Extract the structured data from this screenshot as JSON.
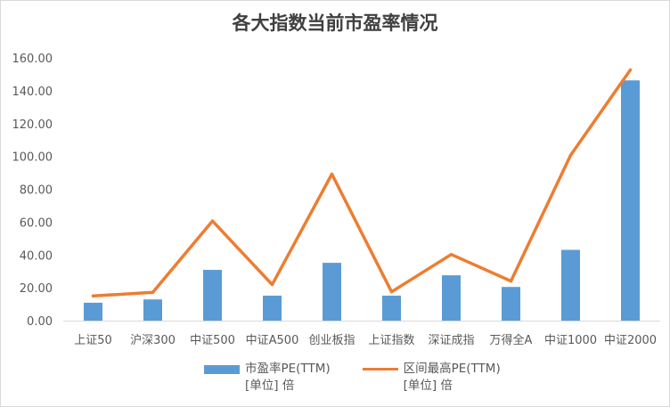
{
  "chart_data": {
    "type": "bar+line",
    "title": "各大指数当前市盈率情况",
    "categories": [
      "上证50",
      "沪深300",
      "中证500",
      "中证A500",
      "创业板指",
      "上证指数",
      "深证成指",
      "万得全A",
      "中证1000",
      "中证2000"
    ],
    "series": [
      {
        "name": "市盈率PE(TTM)\n[单位] 倍",
        "type": "bar",
        "values": [
          10.9,
          12.9,
          30.9,
          15.2,
          35.2,
          15.2,
          27.6,
          20.5,
          43.1,
          146.3
        ]
      },
      {
        "name": "区间最高PE(TTM)\n[单位] 倍",
        "type": "line",
        "values": [
          15.0,
          17.2,
          60.7,
          21.9,
          89.2,
          17.5,
          40.3,
          24.1,
          100.8,
          152.7
        ]
      }
    ],
    "ylim": [
      0,
      160
    ],
    "yticks": [
      "0.00",
      "20.00",
      "40.00",
      "60.00",
      "80.00",
      "100.00",
      "120.00",
      "140.00",
      "160.00"
    ],
    "grid": false,
    "legend_position": "bottom",
    "colors": {
      "bar": "#5b9bd5",
      "line": "#ed7d31"
    }
  }
}
